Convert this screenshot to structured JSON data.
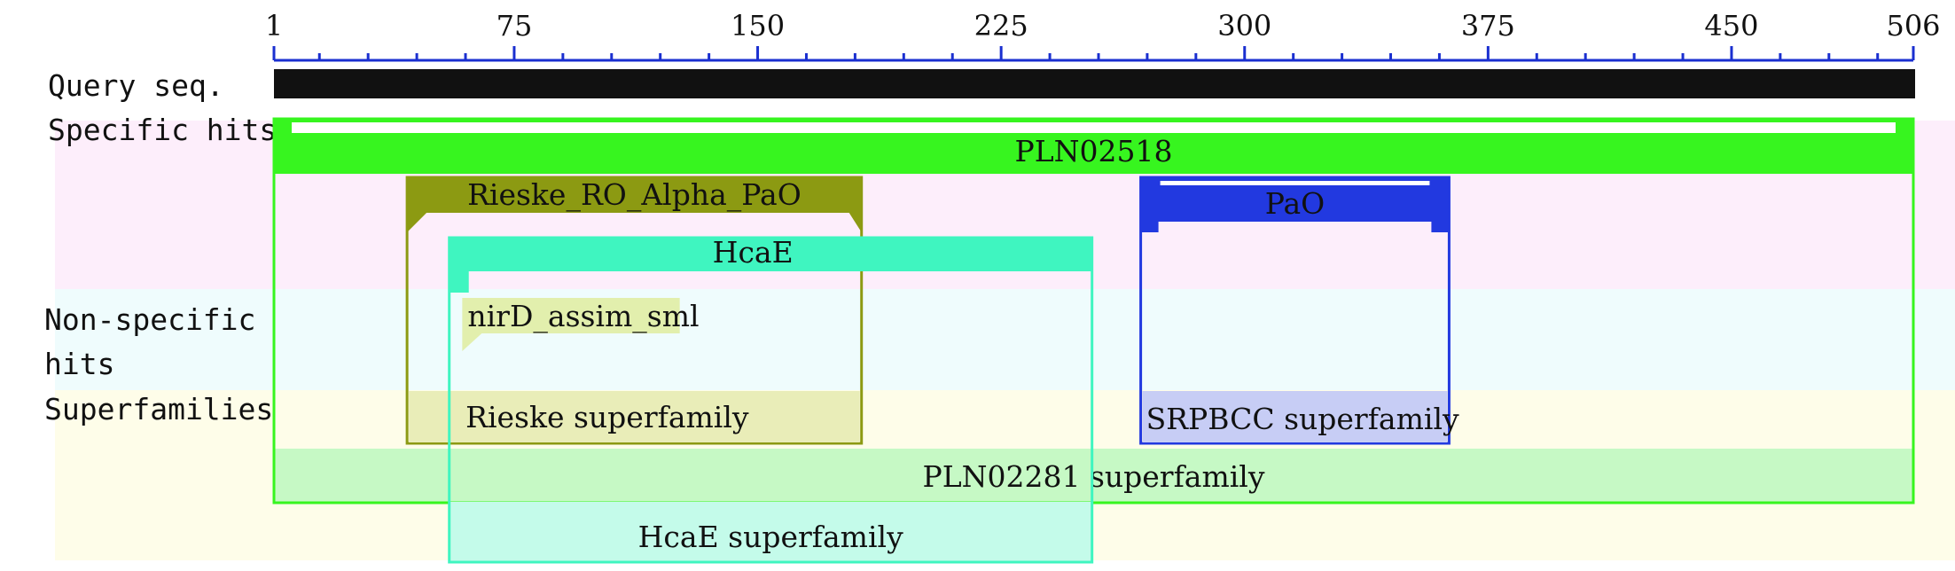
{
  "ruler": {
    "start": 1,
    "end": 506,
    "labeled_ticks": [
      1,
      75,
      150,
      225,
      300,
      375,
      450,
      506
    ],
    "minor_tick_step": 15
  },
  "row_labels": {
    "query": "Query seq.",
    "specific": "Specific hits",
    "nonspecific_line1": "Non-specific",
    "nonspecific_line2": "hits",
    "superfamilies": "Superfamilies"
  },
  "bands": {
    "specific_color": "#fdeefb",
    "nonspecific_color": "#effcfd",
    "superfamilies_color": "#fefde9"
  },
  "domains": [
    {
      "id": "pln02518",
      "label": "PLN02518",
      "start": 1,
      "end": 506,
      "color": "#37f51f",
      "fill": "#ffffff"
    },
    {
      "id": "rieske-ro-alpha-pao",
      "label": "Rieske_RO_Alpha_PaO",
      "start": 42,
      "end": 182,
      "color": "#8c9a12",
      "fill": "#e9edb8"
    },
    {
      "id": "pao",
      "label": "PaO",
      "start": 268,
      "end": 363,
      "color": "#2239e0",
      "fill": "#c7cdf5"
    },
    {
      "id": "hcae",
      "label": "HcaE",
      "start": 55,
      "end": 253,
      "color": "#3ff5c0",
      "fill": "#c4fbea"
    },
    {
      "id": "nird-assim-sml",
      "label": "nirD_assim_sml",
      "start": 59,
      "end": 126,
      "color": "#e2efad",
      "fill": "#e2efad"
    },
    {
      "id": "rieske-superfamily",
      "label": "Rieske superfamily",
      "start": 42,
      "end": 182,
      "color": "#8c9a12",
      "fill": "#e9edb8"
    },
    {
      "id": "srpbcc-superfamily",
      "label": "SRPBCC superfamily",
      "start": 268,
      "end": 363,
      "color": "#2239e0",
      "fill": "#c7cdf5"
    },
    {
      "id": "pln02281-superfamily",
      "label": "PLN02281 superfamily",
      "start": 1,
      "end": 506,
      "color": "#37f51f",
      "fill": "#c6f9c5"
    },
    {
      "id": "hcae-superfamily",
      "label": "HcaE superfamily",
      "start": 55,
      "end": 253,
      "color": "#3ff5c0",
      "fill": "#c4fbea"
    }
  ]
}
